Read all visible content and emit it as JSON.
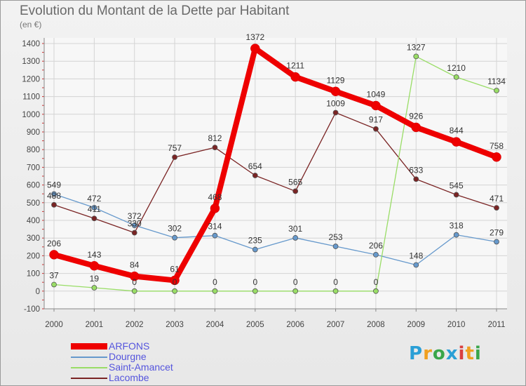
{
  "title": "Evolution du Montant de la Dette par Habitant",
  "unit_label": "(en €)",
  "logo": {
    "text": "Proxiti",
    "colors": [
      "#2a9fd6",
      "#f0a020",
      "#3aa64a",
      "#2a9fd6",
      "#d94040",
      "#f0a020",
      "#3aa64a"
    ]
  },
  "chart_data": {
    "type": "line",
    "x": [
      "2000",
      "2001",
      "2002",
      "2003",
      "2004",
      "2005",
      "2006",
      "2007",
      "2008",
      "2009",
      "2010",
      "2011"
    ],
    "ylim": [
      -100,
      1400
    ],
    "yticks": [
      -100,
      0,
      100,
      200,
      300,
      400,
      500,
      600,
      700,
      800,
      900,
      1000,
      1100,
      1200,
      1300,
      1400
    ],
    "grid": true,
    "legend_position": "bottom-left",
    "series": [
      {
        "name": "ARFONS",
        "color": "#ee0000",
        "values": [
          206,
          143,
          84,
          61,
          468,
          1372,
          1211,
          1129,
          1049,
          926,
          844,
          758
        ]
      },
      {
        "name": "Dourgne",
        "color": "#6699cc",
        "values": [
          549,
          472,
          372,
          302,
          314,
          235,
          301,
          253,
          206,
          148,
          318,
          279
        ]
      },
      {
        "name": "Saint-Amancet",
        "color": "#99dd66",
        "values": [
          37,
          19,
          0,
          0,
          0,
          0,
          0,
          0,
          0,
          1327,
          1210,
          1134
        ]
      },
      {
        "name": "Lacombe",
        "color": "#7a2424",
        "values": [
          488,
          411,
          330,
          757,
          812,
          654,
          565,
          1009,
          917,
          633,
          545,
          471
        ]
      }
    ]
  }
}
